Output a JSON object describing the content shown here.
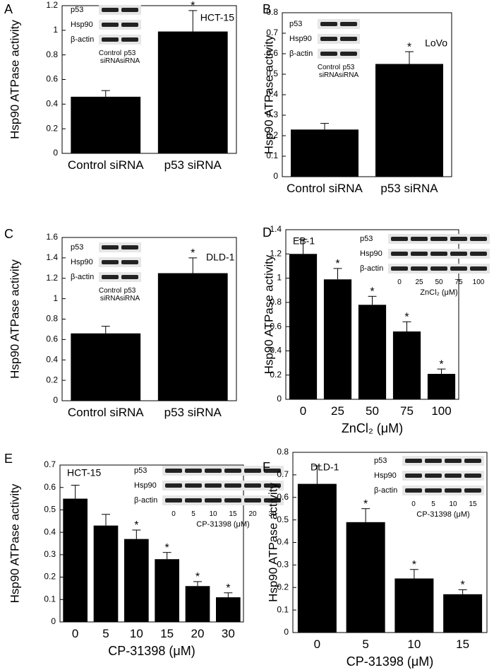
{
  "chart_data": [
    {
      "type": "bar",
      "label": "A",
      "title": "HCT-15",
      "ylabel": "Hsp90 ATPase activity",
      "categories": [
        "Control siRNA",
        "p53 siRNA"
      ],
      "values": [
        0.46,
        0.99
      ],
      "errors": [
        0.05,
        0.17
      ],
      "markers": [
        null,
        "*"
      ],
      "color": "#000000",
      "ylim": [
        0,
        1.2
      ],
      "yticks": [
        0,
        0.2,
        0.4,
        0.6,
        0.8,
        1,
        1.2
      ],
      "inset": {
        "rows": [
          "p53",
          "Hsp90",
          "β-actin"
        ],
        "lanes": [
          "Control siRNA",
          "p53 siRNA"
        ]
      }
    },
    {
      "type": "bar",
      "label": "B",
      "title": "LoVo",
      "ylabel": "Hsp90 ATPase activity",
      "categories": [
        "Control siRNA",
        "p53 siRNA"
      ],
      "values": [
        0.23,
        0.55
      ],
      "errors": [
        0.03,
        0.06
      ],
      "markers": [
        null,
        "*"
      ],
      "color": "#000000",
      "ylim": [
        0,
        0.8
      ],
      "yticks": [
        0,
        0.1,
        0.2,
        0.3,
        0.4,
        0.5,
        0.6,
        0.7,
        0.8
      ],
      "inset": {
        "rows": [
          "p53",
          "Hsp90",
          "β-actin"
        ],
        "lanes": [
          "Control siRNA",
          "p53 siRNA"
        ]
      }
    },
    {
      "type": "bar",
      "label": "C",
      "title": "DLD-1",
      "ylabel": "Hsp90 ATPase activity",
      "categories": [
        "Control siRNA",
        "p53 siRNA"
      ],
      "values": [
        0.66,
        1.25
      ],
      "errors": [
        0.07,
        0.15
      ],
      "markers": [
        null,
        "*"
      ],
      "color": "#000000",
      "ylim": [
        0,
        1.6
      ],
      "yticks": [
        0,
        0.2,
        0.4,
        0.6,
        0.8,
        1,
        1.2,
        1.4,
        1.6
      ],
      "inset": {
        "rows": [
          "p53",
          "Hsp90",
          "β-actin"
        ],
        "lanes": [
          "Control siRNA",
          "p53 siRNA"
        ]
      }
    },
    {
      "type": "bar",
      "label": "D",
      "title": "EB-1",
      "ylabel": "Hsp90 ATPase activity",
      "xlabel": "ZnCl₂ (μM)",
      "categories": [
        "0",
        "25",
        "50",
        "75",
        "100"
      ],
      "values": [
        1.2,
        0.99,
        0.78,
        0.56,
        0.21
      ],
      "errors": [
        0.12,
        0.09,
        0.07,
        0.08,
        0.04
      ],
      "markers": [
        null,
        "*",
        "*",
        "*",
        "*"
      ],
      "color": "#000000",
      "ylim": [
        0,
        1.4
      ],
      "yticks": [
        0,
        0.2,
        0.4,
        0.6,
        0.8,
        1,
        1.2,
        1.4
      ],
      "inset": {
        "rows": [
          "p53",
          "Hsp90",
          "β-actin"
        ],
        "lanes": [
          "0",
          "25",
          "50",
          "75",
          "100"
        ],
        "caption": "ZnCl₂ (μM)"
      }
    },
    {
      "type": "bar",
      "label": "E",
      "title": "HCT-15",
      "ylabel": "Hsp90 ATPase activity",
      "xlabel": "CP-31398 (μM)",
      "categories": [
        "0",
        "5",
        "10",
        "15",
        "20",
        "30"
      ],
      "values": [
        0.55,
        0.43,
        0.37,
        0.28,
        0.16,
        0.11
      ],
      "errors": [
        0.06,
        0.05,
        0.04,
        0.03,
        0.02,
        0.02
      ],
      "markers": [
        null,
        null,
        "*",
        "*",
        "*",
        "*"
      ],
      "color": "#000000",
      "ylim": [
        0,
        0.7
      ],
      "yticks": [
        0,
        0.1,
        0.2,
        0.3,
        0.4,
        0.5,
        0.6,
        0.7
      ],
      "inset": {
        "rows": [
          "p53",
          "Hsp90",
          "β-actin"
        ],
        "lanes": [
          "0",
          "5",
          "10",
          "15",
          "20",
          "30"
        ],
        "caption": "CP-31398 (μM)"
      }
    },
    {
      "type": "bar",
      "label": "F",
      "title": "DLD-1",
      "ylabel": "Hsp90 ATPase activity",
      "xlabel": "CP-31398 (μM)",
      "categories": [
        "0",
        "5",
        "10",
        "15"
      ],
      "values": [
        0.66,
        0.49,
        0.24,
        0.17
      ],
      "errors": [
        0.08,
        0.06,
        0.04,
        0.02
      ],
      "markers": [
        null,
        "*",
        "*",
        "*"
      ],
      "color": "#000000",
      "ylim": [
        0,
        0.8
      ],
      "yticks": [
        0,
        0.1,
        0.2,
        0.3,
        0.4,
        0.5,
        0.6,
        0.7,
        0.8
      ],
      "inset": {
        "rows": [
          "p53",
          "Hsp90",
          "β-actin"
        ],
        "lanes": [
          "0",
          "5",
          "10",
          "15"
        ],
        "caption": "CP-31398 (μM)"
      }
    }
  ]
}
